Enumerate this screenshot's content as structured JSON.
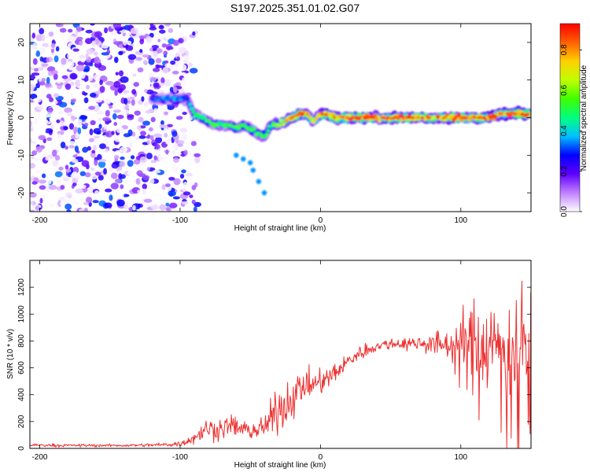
{
  "title": "S197.2025.351.01.02.G07",
  "colorbar": {
    "label": "Normalized spectral amplitude",
    "ticks": [
      "0.0",
      "0.2",
      "0.4",
      "0.6",
      "0.8"
    ],
    "range": [
      0,
      0.93
    ],
    "colors": [
      "#ffffff",
      "#c080ff",
      "#6000ff",
      "#0000ff",
      "#00c0ff",
      "#00ff80",
      "#40ff00",
      "#c0ff00",
      "#ffd000",
      "#ff6000",
      "#ff0000"
    ]
  },
  "chart_data": [
    {
      "type": "heatmap",
      "name": "spectrogram",
      "xlabel": "Height of straight line (km)",
      "ylabel": "Frequency (Hz)",
      "xlim": [
        -207,
        150
      ],
      "ylim": [
        -25,
        25
      ],
      "xticks": [
        -200,
        -100,
        0,
        100
      ],
      "yticks": [
        -20,
        -10,
        0,
        10,
        20
      ],
      "noise_region_x": [
        -207,
        -95
      ],
      "ridge": {
        "x": [
          -120,
          -105,
          -95,
          -90,
          -85,
          -80,
          -75,
          -70,
          -65,
          -60,
          -55,
          -50,
          -45,
          -40,
          -35,
          -30,
          -25,
          -20,
          -15,
          -10,
          -5,
          0,
          5,
          10,
          20,
          30,
          40,
          50,
          60,
          70,
          80,
          90,
          100,
          110,
          120,
          130,
          140,
          150
        ],
        "freq": [
          5,
          5,
          5,
          1,
          0,
          -1,
          -2,
          -2,
          -2,
          -3,
          -2,
          -3,
          -4,
          -5,
          -2,
          -2,
          -1,
          0,
          1,
          1,
          -1,
          1,
          1,
          0,
          0,
          0,
          0,
          0,
          0,
          0,
          0,
          0,
          0,
          0,
          0,
          1,
          1,
          1
        ],
        "amplitude": [
          0.3,
          0.35,
          0.35,
          0.45,
          0.5,
          0.5,
          0.5,
          0.5,
          0.5,
          0.5,
          0.5,
          0.5,
          0.5,
          0.5,
          0.55,
          0.6,
          0.7,
          0.8,
          0.85,
          0.8,
          0.6,
          0.8,
          0.85,
          0.8,
          0.8,
          0.8,
          0.8,
          0.8,
          0.85,
          0.8,
          0.8,
          0.85,
          0.8,
          0.8,
          0.85,
          0.8,
          0.85,
          0.85
        ]
      },
      "secondary_branch": {
        "x": [
          -60,
          -55,
          -50,
          -48,
          -44,
          -40
        ],
        "freq": [
          -10,
          -11,
          -12,
          -14,
          -17,
          -20
        ],
        "amplitude": [
          0.35,
          0.35,
          0.35,
          0.35,
          0.35,
          0.35
        ]
      }
    },
    {
      "type": "line",
      "name": "snr",
      "xlabel": "Height of straight line (km)",
      "ylabel": "SNR (10 * v/v)",
      "xlim": [
        -207,
        150
      ],
      "ylim": [
        0,
        1400
      ],
      "xticks": [
        -200,
        -100,
        0,
        100
      ],
      "yticks": [
        0,
        200,
        400,
        600,
        800,
        1000,
        1200
      ],
      "color": "#ee3030",
      "x": [
        -207,
        -180,
        -160,
        -140,
        -120,
        -110,
        -100,
        -95,
        -90,
        -85,
        -80,
        -75,
        -70,
        -65,
        -60,
        -55,
        -50,
        -45,
        -40,
        -35,
        -30,
        -25,
        -20,
        -15,
        -10,
        -5,
        0,
        5,
        10,
        15,
        20,
        25,
        30,
        35,
        40,
        45,
        50,
        60,
        70,
        80,
        90,
        95,
        100,
        110,
        120,
        130,
        140,
        150
      ],
      "mean": [
        25,
        22,
        22,
        22,
        25,
        28,
        35,
        55,
        80,
        120,
        150,
        140,
        150,
        170,
        160,
        140,
        130,
        140,
        150,
        220,
        300,
        320,
        380,
        440,
        470,
        480,
        490,
        520,
        560,
        600,
        650,
        690,
        720,
        740,
        760,
        770,
        780,
        780,
        785,
        780,
        770,
        760,
        750,
        760,
        760,
        760,
        760,
        780
      ],
      "spread": [
        10,
        10,
        10,
        10,
        12,
        15,
        20,
        30,
        45,
        60,
        70,
        70,
        70,
        70,
        70,
        70,
        60,
        70,
        80,
        120,
        150,
        140,
        140,
        120,
        100,
        90,
        80,
        80,
        70,
        60,
        60,
        50,
        50,
        40,
        40,
        40,
        40,
        40,
        50,
        80,
        100,
        150,
        250,
        300,
        300,
        350,
        400,
        400
      ]
    }
  ]
}
